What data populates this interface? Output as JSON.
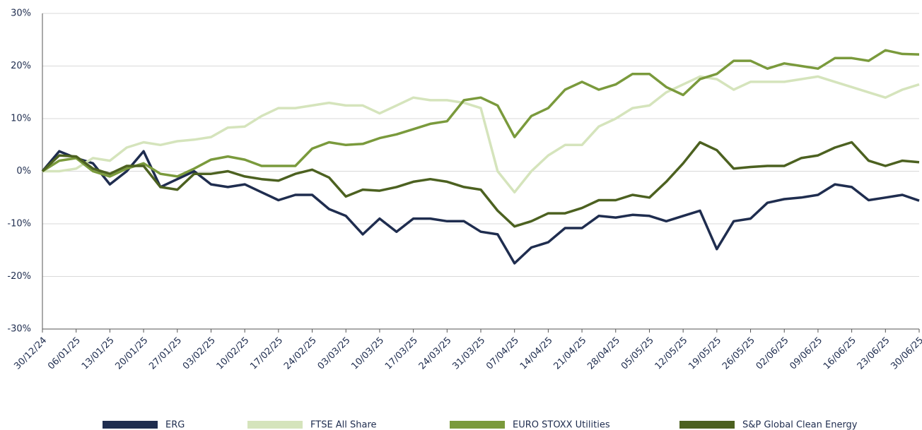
{
  "chart_data": {
    "type": "line",
    "categories": [
      "30/12/24",
      null,
      "06/01/25",
      null,
      "13/01/25",
      null,
      "20/01/25",
      null,
      "27/01/25",
      null,
      "03/02/25",
      null,
      "10/02/25",
      null,
      "17/02/25",
      null,
      "24/02/25",
      null,
      "03/03/25",
      null,
      "10/03/25",
      null,
      "17/03/25",
      null,
      "24/03/25",
      null,
      "31/03/25",
      null,
      "07/04/25",
      null,
      "14/04/25",
      null,
      "21/04/25",
      null,
      "28/04/25",
      null,
      "05/05/25",
      null,
      "12/05/25",
      null,
      "19/05/25",
      null,
      "26/05/25",
      null,
      "02/06/25",
      null,
      "09/06/25",
      null,
      "16/06/25",
      null,
      "23/06/25",
      null,
      "30/06/25"
    ],
    "series": [
      {
        "name": "ERG",
        "color": "#1f2d4f",
        "values": [
          0,
          3.8,
          2.5,
          1.5,
          -2.5,
          0,
          3.8,
          -3,
          -1.5,
          0,
          -2.5,
          -3,
          -2.5,
          -4,
          -5.5,
          -4.5,
          -4.5,
          -7.2,
          -8.5,
          -12,
          -9,
          -11.5,
          -9,
          -9,
          -9.5,
          -9.5,
          -11.5,
          -12,
          -17.5,
          -14.5,
          -13.5,
          -10.8,
          -10.8,
          -8.5,
          -8.8,
          -8.3,
          -8.5,
          -9.5,
          -8.5,
          -7.5,
          -14.8,
          -9.5,
          -9,
          -6,
          -5.3,
          -5,
          -4.5,
          -2.5,
          -3,
          -5.5,
          -5,
          -4.5,
          -5.6
        ]
      },
      {
        "name": "FTSE All Share",
        "color": "#d5e4bc",
        "values": [
          0,
          0,
          0.5,
          2.5,
          2,
          4.5,
          5.5,
          5,
          5.7,
          6,
          6.5,
          8.3,
          8.5,
          10.5,
          12,
          12,
          12.5,
          13,
          12.5,
          12.5,
          11,
          12.5,
          14,
          13.5,
          13.5,
          13,
          12,
          0,
          -4,
          0,
          3,
          5,
          5,
          8.5,
          10,
          12,
          12.5,
          15,
          16.5,
          18,
          17.5,
          15.5,
          17,
          17,
          17,
          17.5,
          18,
          17,
          16,
          15,
          14,
          15.5,
          16.5
        ]
      },
      {
        "name": "EURO STOXX Utilities",
        "color": "#7a9a3c",
        "values": [
          0,
          2,
          2.5,
          0,
          -1,
          0.5,
          1.5,
          -0.5,
          -1,
          0.5,
          2.2,
          2.8,
          2.2,
          1,
          1,
          1,
          4.3,
          5.5,
          5,
          5.2,
          6.3,
          7,
          8,
          9,
          9.5,
          13.5,
          14,
          12.5,
          6.5,
          10.5,
          12,
          15.5,
          17,
          15.5,
          16.5,
          18.5,
          18.5,
          16,
          14.5,
          17.5,
          18.5,
          21,
          21,
          19.5,
          20.5,
          20,
          19.5,
          21.5,
          21.5,
          21,
          23,
          22.3,
          22.2
        ]
      },
      {
        "name": "S&P Global Clean Energy",
        "color": "#4c6120",
        "values": [
          0,
          3,
          2.8,
          0.5,
          -0.5,
          1,
          1,
          -3,
          -3.5,
          -0.5,
          -0.5,
          0,
          -1,
          -1.5,
          -1.8,
          -0.5,
          0.3,
          -1.2,
          -4.8,
          -3.5,
          -3.7,
          -3,
          -2,
          -1.5,
          -2,
          -3,
          -3.5,
          -7.5,
          -10.5,
          -9.5,
          -8,
          -8,
          -7,
          -5.5,
          -5.5,
          -4.5,
          -5,
          -2,
          1.5,
          5.5,
          4,
          0.5,
          0.8,
          1,
          1,
          2.5,
          3,
          4.5,
          5.5,
          2,
          1,
          2,
          1.7
        ]
      }
    ],
    "ylim": [
      -30,
      30
    ],
    "yticks": [
      {
        "value": -30,
        "label": "-30%"
      },
      {
        "value": -20,
        "label": "-20%"
      },
      {
        "value": -10,
        "label": "-10%"
      },
      {
        "value": 0,
        "label": "0%"
      },
      {
        "value": 10,
        "label": "10%"
      },
      {
        "value": 20,
        "label": "20%"
      },
      {
        "value": 30,
        "label": "30%"
      }
    ],
    "grid": true
  }
}
